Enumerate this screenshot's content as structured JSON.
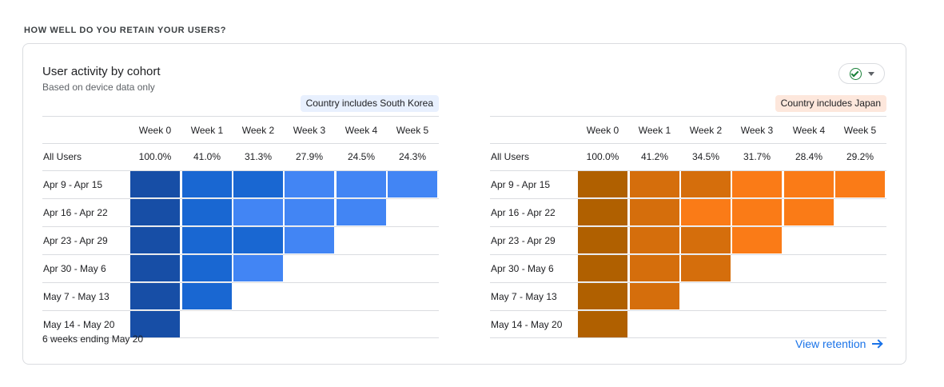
{
  "section_title": "HOW WELL DO YOU RETAIN YOUR USERS?",
  "card": {
    "title": "User activity by cohort",
    "subtitle": "Based on device data only",
    "footer_note": "6 weeks ending May 20",
    "view_link": "View retention"
  },
  "icons": {
    "check": "check-circle-icon",
    "caret": "caret-down-icon",
    "arrow": "arrow-right-icon"
  },
  "chart_data": [
    {
      "type": "heatmap",
      "title": "Country includes South Korea",
      "chip_color": "#e8f0fe",
      "palette": [
        "#174ea6",
        "#1967d2",
        "#4285f4"
      ],
      "columns": [
        "Week 0",
        "Week 1",
        "Week 2",
        "Week 3",
        "Week 4",
        "Week 5"
      ],
      "all_users_label": "All Users",
      "all_users": [
        "100.0%",
        "41.0%",
        "31.3%",
        "27.9%",
        "24.5%",
        "24.3%"
      ],
      "rows": [
        "Apr 9 - Apr 15",
        "Apr 16 - Apr 22",
        "Apr 23 - Apr 29",
        "Apr 30 - May 6",
        "May 7 - May 13",
        "May 14 - May 20"
      ],
      "levels": [
        [
          0,
          1,
          1,
          2,
          2,
          2
        ],
        [
          0,
          1,
          2,
          2,
          2
        ],
        [
          0,
          1,
          1,
          2
        ],
        [
          0,
          1,
          2
        ],
        [
          0,
          1
        ],
        [
          0
        ]
      ]
    },
    {
      "type": "heatmap",
      "title": "Country includes Japan",
      "chip_color": "#fde7dc",
      "palette": [
        "#b06000",
        "#d56e0c",
        "#fa7b17"
      ],
      "columns": [
        "Week 0",
        "Week 1",
        "Week 2",
        "Week 3",
        "Week 4",
        "Week 5"
      ],
      "all_users_label": "All Users",
      "all_users": [
        "100.0%",
        "41.2%",
        "34.5%",
        "31.7%",
        "28.4%",
        "29.2%"
      ],
      "rows": [
        "Apr 9 - Apr 15",
        "Apr 16 - Apr 22",
        "Apr 23 - Apr 29",
        "Apr 30 - May 6",
        "May 7 - May 13",
        "May 14 - May 20"
      ],
      "levels": [
        [
          0,
          1,
          1,
          2,
          2,
          2
        ],
        [
          0,
          1,
          2,
          2,
          2
        ],
        [
          0,
          1,
          1,
          2
        ],
        [
          0,
          1,
          1
        ],
        [
          0,
          1
        ],
        [
          0
        ]
      ]
    }
  ]
}
